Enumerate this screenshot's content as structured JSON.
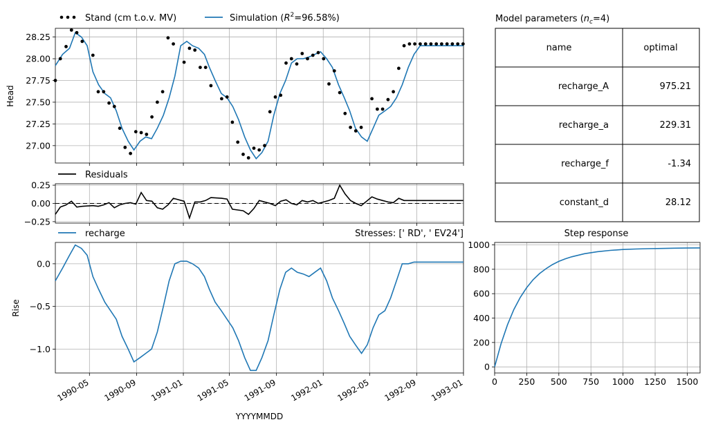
{
  "colors": {
    "simulation": "#1f77b4",
    "observed": "#000000",
    "residuals": "#000000",
    "grid": "#b0b0b0"
  },
  "xaxis": {
    "label": "YYYYMMDD",
    "ticks": [
      "1990-05",
      "1990-09",
      "1991-01",
      "1991-05",
      "1991-09",
      "1992-01",
      "1992-05",
      "1992-09",
      "1993-01"
    ]
  },
  "head_panel": {
    "ylabel": "Head",
    "legend": {
      "observed": "Stand (cm t.o.v. MV)",
      "simulation_prefix": "Simulation (",
      "simulation_r": "R",
      "simulation_sup": "2",
      "simulation_suffix": "=96.58%)"
    },
    "yticks": [
      "28.25",
      "28.00",
      "27.75",
      "27.50",
      "27.25",
      "27.00"
    ]
  },
  "residual_panel": {
    "legend": "Residuals",
    "yticks": [
      "0.25",
      "0.00",
      "−0.25"
    ]
  },
  "contrib_panel": {
    "ylabel": "Rise",
    "legend": "recharge",
    "stresses_label": "Stresses: ['   RD', ' EV24']",
    "yticks": [
      "0.0",
      "−0.5",
      "−1.0"
    ]
  },
  "params_table": {
    "title_prefix": "Model parameters (",
    "title_n": "n",
    "title_sub": "c",
    "title_suffix": "=4)",
    "headers": [
      "name",
      "optimal"
    ],
    "rows": [
      {
        "name": "recharge_A",
        "value": "975.21"
      },
      {
        "name": "recharge_a",
        "value": "229.31"
      },
      {
        "name": "recharge_f",
        "value": "-1.34"
      },
      {
        "name": "constant_d",
        "value": "28.12"
      }
    ]
  },
  "step_panel": {
    "title": "Step response",
    "xticks": [
      "0",
      "250",
      "500",
      "750",
      "1000",
      "1250",
      "1500"
    ],
    "yticks": [
      "1000",
      "800",
      "600",
      "400",
      "200",
      "0"
    ]
  },
  "chart_data": [
    {
      "type": "line",
      "panel": "head",
      "ylabel": "Head",
      "xlim": [
        "1990-02-01",
        "1993-01-01"
      ],
      "ylim": [
        26.8,
        28.35
      ],
      "series": [
        {
          "name": "Stand (cm t.o.v. MV)",
          "style": "points",
          "x": [
            "1990-02-01",
            "1990-02-14",
            "1990-03-01",
            "1990-03-15",
            "1990-03-29",
            "1990-04-12",
            "1990-05-10",
            "1990-05-24",
            "1990-06-07",
            "1990-06-21",
            "1990-07-05",
            "1990-07-19",
            "1990-08-02",
            "1990-08-16",
            "1990-08-30",
            "1990-09-13",
            "1990-09-27",
            "1990-10-11",
            "1990-10-25",
            "1990-11-08",
            "1990-11-22",
            "1990-12-06",
            "1991-01-03",
            "1991-01-17",
            "1991-01-31",
            "1991-02-14",
            "1991-02-28",
            "1991-03-14",
            "1991-04-11",
            "1991-04-25",
            "1991-05-09",
            "1991-05-23",
            "1991-06-06",
            "1991-06-20",
            "1991-07-04",
            "1991-07-18",
            "1991-08-01",
            "1991-08-15",
            "1991-08-29",
            "1991-09-12",
            "1991-09-26",
            "1991-10-10",
            "1991-10-24",
            "1991-11-07",
            "1991-11-21",
            "1991-12-05",
            "1991-12-19",
            "1992-01-02",
            "1992-01-16",
            "1992-01-30",
            "1992-02-13",
            "1992-02-27",
            "1992-03-12",
            "1992-03-26",
            "1992-04-09",
            "1992-05-07",
            "1992-05-21",
            "1992-06-04",
            "1992-06-18",
            "1992-07-02",
            "1992-07-16",
            "1992-07-30",
            "1992-08-13",
            "1992-08-27",
            "1992-09-10",
            "1992-09-24",
            "1992-10-08",
            "1992-10-22",
            "1992-11-05",
            "1992-11-19",
            "1992-12-03",
            "1992-12-17",
            "1992-12-31"
          ],
          "y": [
            27.75,
            28.0,
            28.14,
            28.33,
            28.3,
            28.2,
            28.04,
            27.62,
            27.62,
            27.49,
            27.45,
            27.2,
            26.98,
            26.91,
            27.16,
            27.15,
            27.13,
            27.33,
            27.5,
            27.62,
            28.24,
            28.17,
            27.96,
            28.12,
            28.1,
            27.9,
            27.9,
            27.69,
            27.54,
            27.56,
            27.27,
            27.04,
            26.9,
            26.86,
            26.97,
            26.95,
            27.0,
            27.39,
            27.56,
            27.58,
            27.95,
            28.0,
            27.94,
            28.06,
            28.0,
            28.04,
            28.07,
            28.0,
            27.71,
            27.86,
            27.61,
            27.37,
            27.21,
            27.17,
            27.21,
            27.54,
            27.42,
            27.42,
            27.53,
            27.62,
            27.89,
            28.15,
            28.17,
            28.17,
            28.17,
            28.17,
            28.17,
            28.17,
            28.17,
            28.17,
            28.17,
            28.17,
            28.17
          ]
        },
        {
          "name": "Simulation (R2=96.58%)",
          "style": "line",
          "x": [
            "1990-02-01",
            "1990-02-20",
            "1990-03-10",
            "1990-03-25",
            "1990-04-10",
            "1990-04-25",
            "1990-05-10",
            "1990-05-25",
            "1990-06-10",
            "1990-06-25",
            "1990-07-10",
            "1990-07-25",
            "1990-08-10",
            "1990-08-25",
            "1990-09-10",
            "1990-09-25",
            "1990-10-10",
            "1990-10-25",
            "1990-11-10",
            "1990-11-25",
            "1990-12-10",
            "1990-12-25",
            "1991-01-10",
            "1991-01-25",
            "1991-02-10",
            "1991-02-25",
            "1991-03-10",
            "1991-03-25",
            "1991-04-10",
            "1991-04-25",
            "1991-05-10",
            "1991-05-25",
            "1991-06-10",
            "1991-06-25",
            "1991-07-10",
            "1991-07-25",
            "1991-08-10",
            "1991-08-25",
            "1991-09-10",
            "1991-09-25",
            "1991-10-10",
            "1991-10-25",
            "1991-11-10",
            "1991-11-25",
            "1991-12-10",
            "1991-12-25",
            "1992-01-10",
            "1992-01-25",
            "1992-02-10",
            "1992-02-25",
            "1992-03-10",
            "1992-03-25",
            "1992-04-10",
            "1992-04-25",
            "1992-05-10",
            "1992-05-25",
            "1992-06-10",
            "1992-06-25",
            "1992-07-10",
            "1992-07-25",
            "1992-08-10",
            "1992-08-25",
            "1992-09-10",
            "1992-09-25",
            "1992-10-10",
            "1992-10-25",
            "1992-11-10",
            "1992-11-25",
            "1992-12-10",
            "1992-12-25",
            "1993-01-01"
          ],
          "y": [
            27.92,
            28.05,
            28.12,
            28.3,
            28.25,
            28.15,
            27.85,
            27.7,
            27.6,
            27.55,
            27.4,
            27.2,
            27.05,
            26.95,
            27.05,
            27.1,
            27.08,
            27.2,
            27.35,
            27.55,
            27.8,
            28.15,
            28.2,
            28.15,
            28.12,
            28.05,
            27.9,
            27.75,
            27.6,
            27.55,
            27.45,
            27.3,
            27.1,
            26.95,
            26.85,
            26.92,
            27.05,
            27.35,
            27.6,
            27.75,
            27.95,
            28.0,
            28.0,
            28.02,
            28.05,
            28.08,
            28.0,
            27.9,
            27.7,
            27.55,
            27.4,
            27.2,
            27.1,
            27.05,
            27.2,
            27.35,
            27.4,
            27.45,
            27.55,
            27.7,
            27.9,
            28.05,
            28.15,
            28.15,
            28.15,
            28.15,
            28.15,
            28.15,
            28.15,
            28.15,
            28.15
          ]
        }
      ]
    },
    {
      "type": "line",
      "panel": "residuals",
      "ylim": [
        -0.27,
        0.27
      ],
      "series": [
        {
          "name": "Residuals",
          "x": [
            "1990-02-01",
            "1990-02-14",
            "1990-03-01",
            "1990-03-15",
            "1990-03-29",
            "1990-04-12",
            "1990-05-10",
            "1990-05-24",
            "1990-06-07",
            "1990-06-21",
            "1990-07-05",
            "1990-07-19",
            "1990-08-02",
            "1990-08-16",
            "1990-08-30",
            "1990-09-13",
            "1990-09-27",
            "1990-10-11",
            "1990-10-25",
            "1990-11-08",
            "1990-11-22",
            "1990-12-06",
            "1991-01-03",
            "1991-01-17",
            "1991-01-31",
            "1991-02-14",
            "1991-02-28",
            "1991-03-14",
            "1991-04-11",
            "1991-04-25",
            "1991-05-09",
            "1991-05-23",
            "1991-06-06",
            "1991-06-20",
            "1991-07-04",
            "1991-07-18",
            "1991-08-01",
            "1991-08-15",
            "1991-08-29",
            "1991-09-12",
            "1991-09-26",
            "1991-10-10",
            "1991-10-24",
            "1991-11-07",
            "1991-11-21",
            "1991-12-05",
            "1991-12-19",
            "1992-01-02",
            "1992-01-16",
            "1992-01-30",
            "1992-02-13",
            "1992-02-27",
            "1992-03-12",
            "1992-03-26",
            "1992-04-09",
            "1992-05-07",
            "1992-05-21",
            "1992-06-04",
            "1992-06-18",
            "1992-07-02",
            "1992-07-16",
            "1992-07-30",
            "1992-08-13",
            "1992-08-27",
            "1992-09-10",
            "1992-09-24",
            "1992-10-08",
            "1992-10-22",
            "1992-11-05",
            "1992-11-19",
            "1992-12-03",
            "1992-12-17",
            "1992-12-31"
          ],
          "y": [
            -0.15,
            -0.05,
            -0.02,
            0.03,
            -0.05,
            -0.04,
            -0.03,
            -0.04,
            -0.02,
            0.01,
            -0.06,
            -0.02,
            0.0,
            0.01,
            -0.01,
            0.15,
            0.04,
            0.03,
            -0.06,
            -0.08,
            -0.02,
            0.07,
            0.03,
            -0.2,
            0.02,
            0.02,
            0.04,
            0.08,
            0.07,
            0.06,
            -0.08,
            -0.09,
            -0.1,
            -0.15,
            -0.07,
            0.04,
            0.02,
            0.0,
            -0.03,
            0.03,
            0.05,
            0.0,
            -0.02,
            0.04,
            0.02,
            0.04,
            0.0,
            0.02,
            0.04,
            0.07,
            0.25,
            0.13,
            0.04,
            0.0,
            -0.03,
            0.09,
            0.06,
            0.04,
            0.02,
            0.01,
            0.07,
            0.04,
            0.04,
            0.04,
            0.04,
            0.04,
            0.04,
            0.04,
            0.04,
            0.04,
            0.04,
            0.04,
            0.04
          ]
        }
      ]
    },
    {
      "type": "line",
      "panel": "contribution",
      "ylabel": "Rise",
      "ylim": [
        -1.28,
        0.25
      ],
      "series": [
        {
          "name": "recharge",
          "x": [
            "1990-02-01",
            "1990-02-20",
            "1990-03-10",
            "1990-03-25",
            "1990-04-10",
            "1990-04-25",
            "1990-05-10",
            "1990-05-25",
            "1990-06-10",
            "1990-06-25",
            "1990-07-10",
            "1990-07-25",
            "1990-08-10",
            "1990-08-25",
            "1990-09-10",
            "1990-09-25",
            "1990-10-10",
            "1990-10-25",
            "1990-11-10",
            "1990-11-25",
            "1990-12-10",
            "1990-12-25",
            "1991-01-10",
            "1991-01-25",
            "1991-02-10",
            "1991-02-25",
            "1991-03-10",
            "1991-03-25",
            "1991-04-10",
            "1991-04-25",
            "1991-05-10",
            "1991-05-25",
            "1991-06-10",
            "1991-06-25",
            "1991-07-10",
            "1991-07-25",
            "1991-08-10",
            "1991-08-25",
            "1991-09-10",
            "1991-09-25",
            "1991-10-10",
            "1991-10-25",
            "1991-11-10",
            "1991-11-25",
            "1991-12-10",
            "1991-12-25",
            "1992-01-10",
            "1992-01-25",
            "1992-02-10",
            "1992-02-25",
            "1992-03-10",
            "1992-03-25",
            "1992-04-10",
            "1992-04-25",
            "1992-05-10",
            "1992-05-25",
            "1992-06-10",
            "1992-06-25",
            "1992-07-10",
            "1992-07-25",
            "1992-08-10",
            "1992-08-25",
            "1992-09-10",
            "1992-09-25",
            "1992-10-10",
            "1992-10-25",
            "1992-11-10",
            "1992-11-25",
            "1992-12-10",
            "1992-12-25",
            "1993-01-01"
          ],
          "y": [
            -0.2,
            -0.05,
            0.1,
            0.22,
            0.18,
            0.1,
            -0.15,
            -0.3,
            -0.45,
            -0.55,
            -0.65,
            -0.85,
            -1.0,
            -1.15,
            -1.1,
            -1.05,
            -1.0,
            -0.8,
            -0.5,
            -0.2,
            0.0,
            0.03,
            0.03,
            0.0,
            -0.05,
            -0.15,
            -0.3,
            -0.45,
            -0.55,
            -0.65,
            -0.75,
            -0.9,
            -1.1,
            -1.25,
            -1.25,
            -1.1,
            -0.9,
            -0.6,
            -0.3,
            -0.1,
            -0.05,
            -0.1,
            -0.12,
            -0.15,
            -0.1,
            -0.05,
            -0.2,
            -0.4,
            -0.55,
            -0.7,
            -0.85,
            -0.95,
            -1.05,
            -0.95,
            -0.75,
            -0.6,
            -0.55,
            -0.4,
            -0.2,
            0.0,
            0.0,
            0.02,
            0.02,
            0.02,
            0.02,
            0.02,
            0.02,
            0.02,
            0.02,
            0.02,
            0.02
          ]
        }
      ]
    },
    {
      "type": "line",
      "panel": "step_response",
      "title": "Step response",
      "xlim": [
        0,
        1600
      ],
      "ylim": [
        -50,
        1020
      ],
      "series": [
        {
          "name": "",
          "x": [
            0,
            50,
            100,
            150,
            200,
            250,
            300,
            350,
            400,
            450,
            500,
            550,
            600,
            700,
            800,
            900,
            1000,
            1100,
            1200,
            1300,
            1400,
            1500,
            1600
          ],
          "y": [
            0,
            190,
            345,
            470,
            570,
            650,
            715,
            765,
            805,
            838,
            865,
            885,
            902,
            928,
            944,
            955,
            962,
            966,
            969,
            971,
            973,
            974,
            975
          ]
        }
      ]
    }
  ]
}
